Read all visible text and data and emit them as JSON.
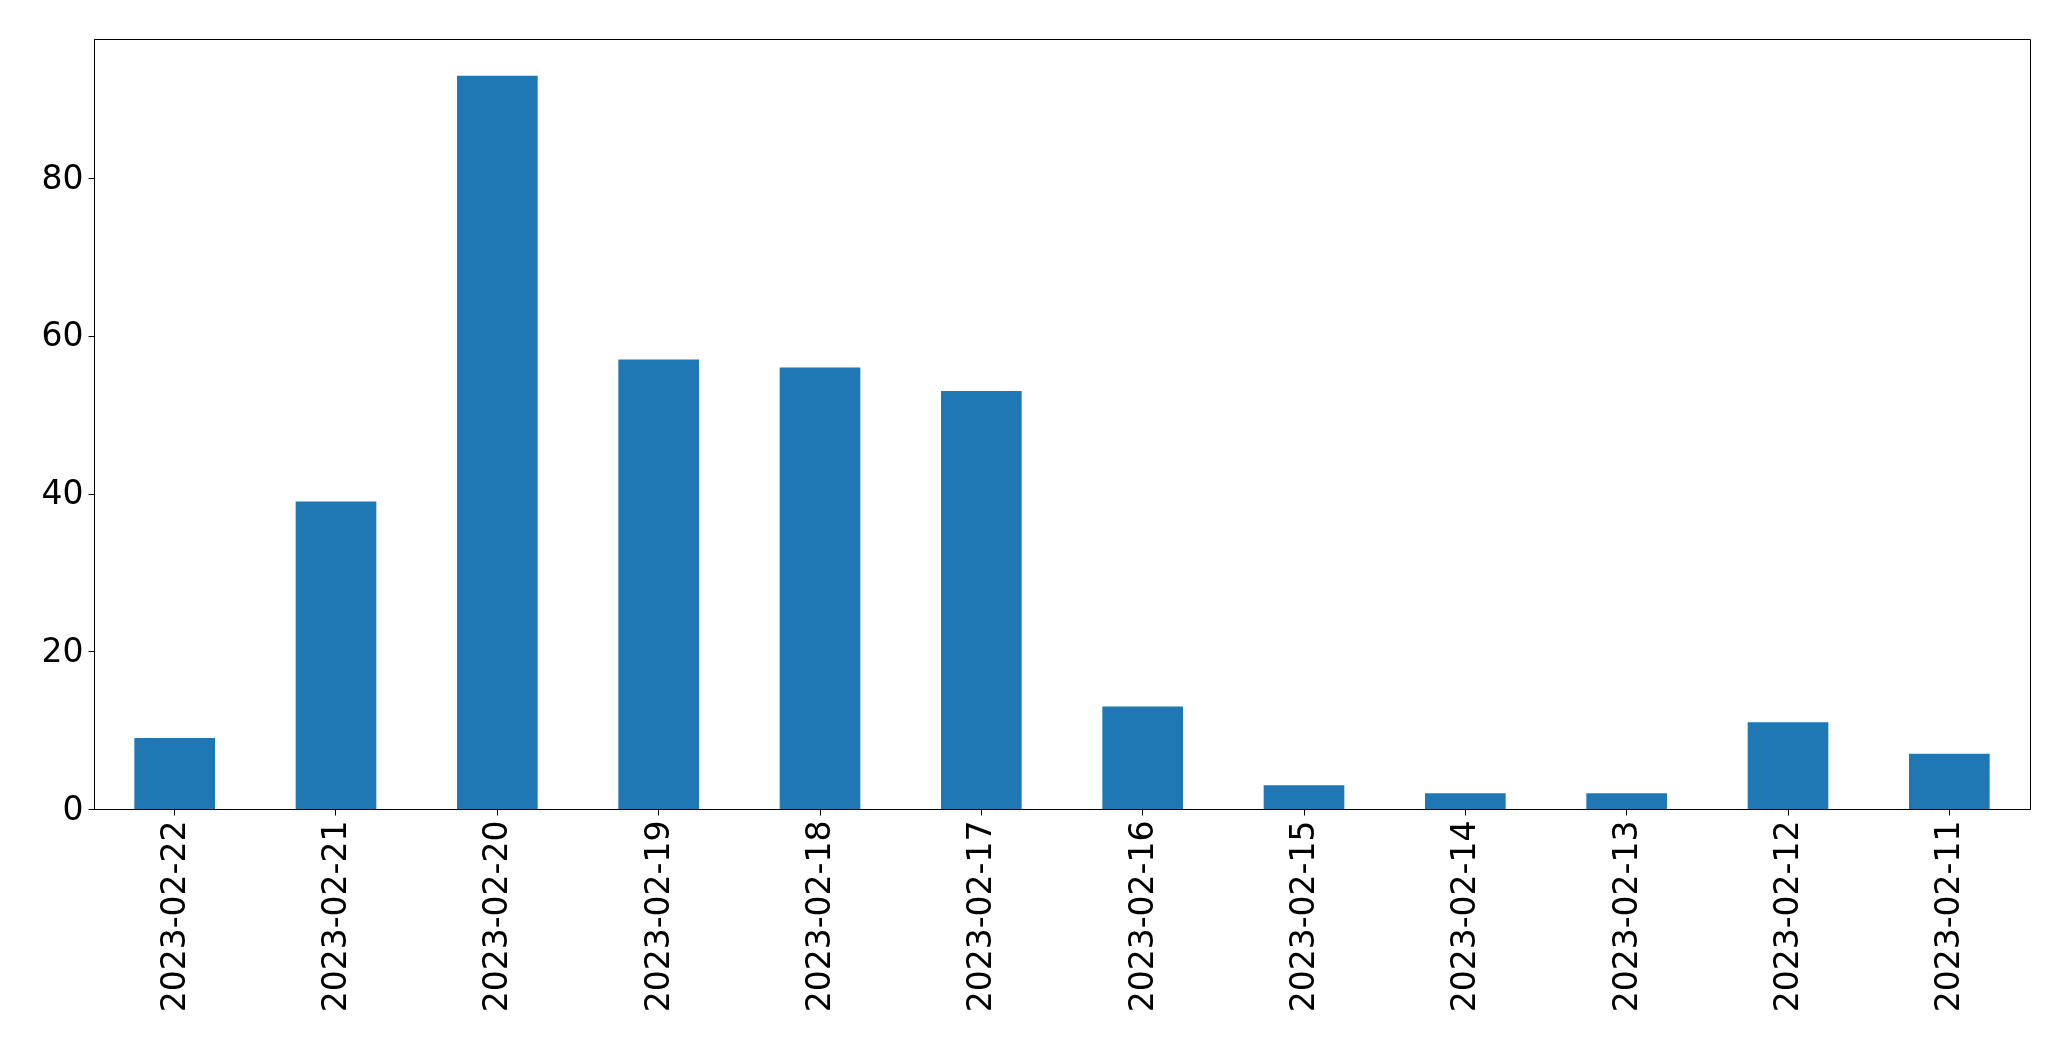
{
  "chart_data": {
    "type": "bar",
    "categories": [
      "2023-02-22",
      "2023-02-21",
      "2023-02-20",
      "2023-02-19",
      "2023-02-18",
      "2023-02-17",
      "2023-02-16",
      "2023-02-15",
      "2023-02-14",
      "2023-02-13",
      "2023-02-12",
      "2023-02-11"
    ],
    "values": [
      9,
      39,
      93,
      57,
      56,
      53,
      13,
      3,
      2,
      2,
      11,
      7
    ],
    "color": "#1f77b4",
    "ylim": [
      0,
      97.65
    ],
    "yticks": [
      0,
      20,
      40,
      60,
      80
    ],
    "grid": false
  }
}
